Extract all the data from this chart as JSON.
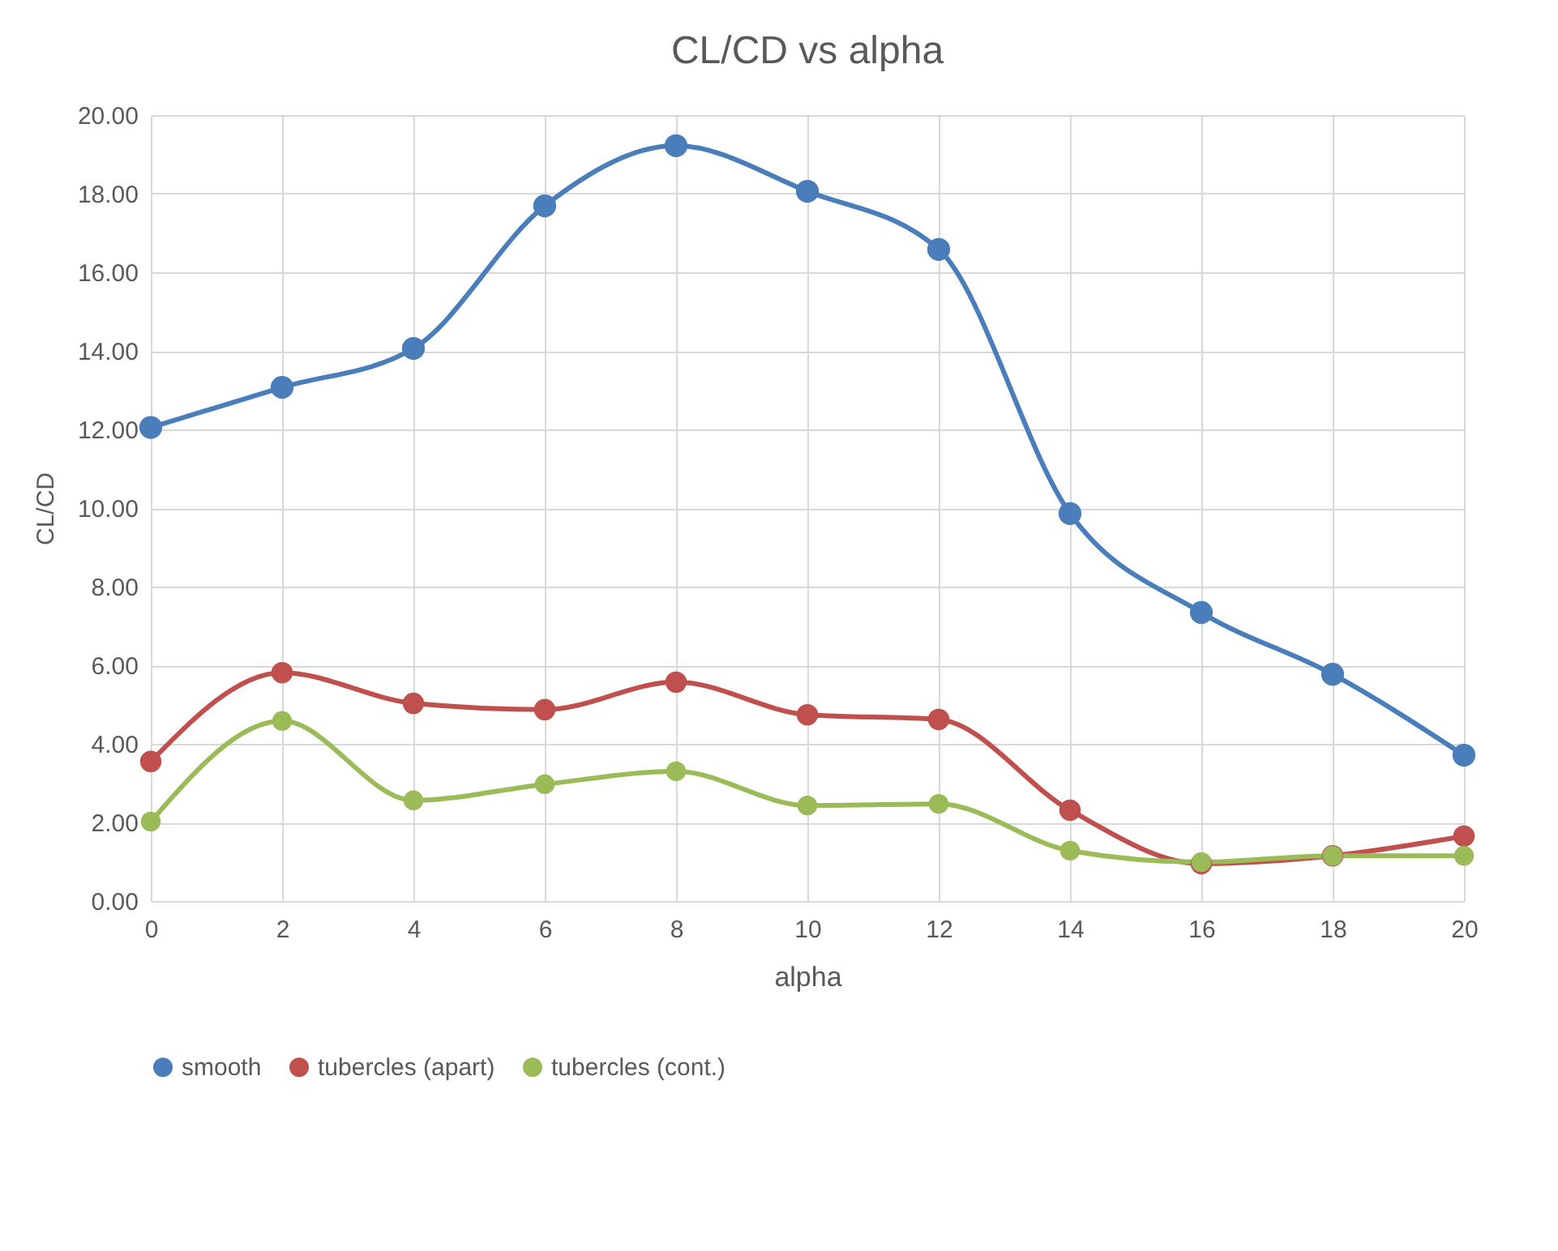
{
  "chart_data": {
    "type": "line",
    "title": "CL/CD vs alpha",
    "xlabel": "alpha",
    "ylabel": "CL/CD",
    "x": [
      0,
      2,
      4,
      6,
      8,
      10,
      12,
      14,
      16,
      18,
      20
    ],
    "xlim": [
      0,
      20
    ],
    "xticks": [
      0,
      2,
      4,
      6,
      8,
      10,
      12,
      14,
      16,
      18,
      20
    ],
    "ylim": [
      0,
      20
    ],
    "yticks": [
      {
        "value": 0,
        "label": "0.00"
      },
      {
        "value": 2,
        "label": "2.00"
      },
      {
        "value": 4,
        "label": "4.00"
      },
      {
        "value": 6,
        "label": "6.00"
      },
      {
        "value": 8,
        "label": "8.00"
      },
      {
        "value": 10,
        "label": "10.00"
      },
      {
        "value": 12,
        "label": "12.00"
      },
      {
        "value": 14,
        "label": "14.00"
      },
      {
        "value": 16,
        "label": "16.00"
      },
      {
        "value": 18,
        "label": "18.00"
      },
      {
        "value": 20,
        "label": "20.00"
      }
    ],
    "grid": true,
    "legend": "bottom",
    "marker": "circle",
    "line_style": "solid",
    "series": [
      {
        "name": "smooth",
        "color": "#4a7ebb",
        "values": [
          12.05,
          13.07,
          14.06,
          17.69,
          19.22,
          18.06,
          16.58,
          9.86,
          7.34,
          5.77,
          3.71
        ]
      },
      {
        "name": "tubercles (apart)",
        "color": "#c0504d",
        "values": [
          3.55,
          5.81,
          5.03,
          4.87,
          5.57,
          4.74,
          4.62,
          2.31,
          0.95,
          1.15,
          1.65
        ]
      },
      {
        "name": "tubercles (cont.)",
        "color": "#9bbb59",
        "values": [
          2.02,
          4.58,
          2.56,
          2.97,
          3.3,
          2.43,
          2.47,
          1.28,
          0.99,
          1.15,
          1.15
        ]
      }
    ]
  }
}
